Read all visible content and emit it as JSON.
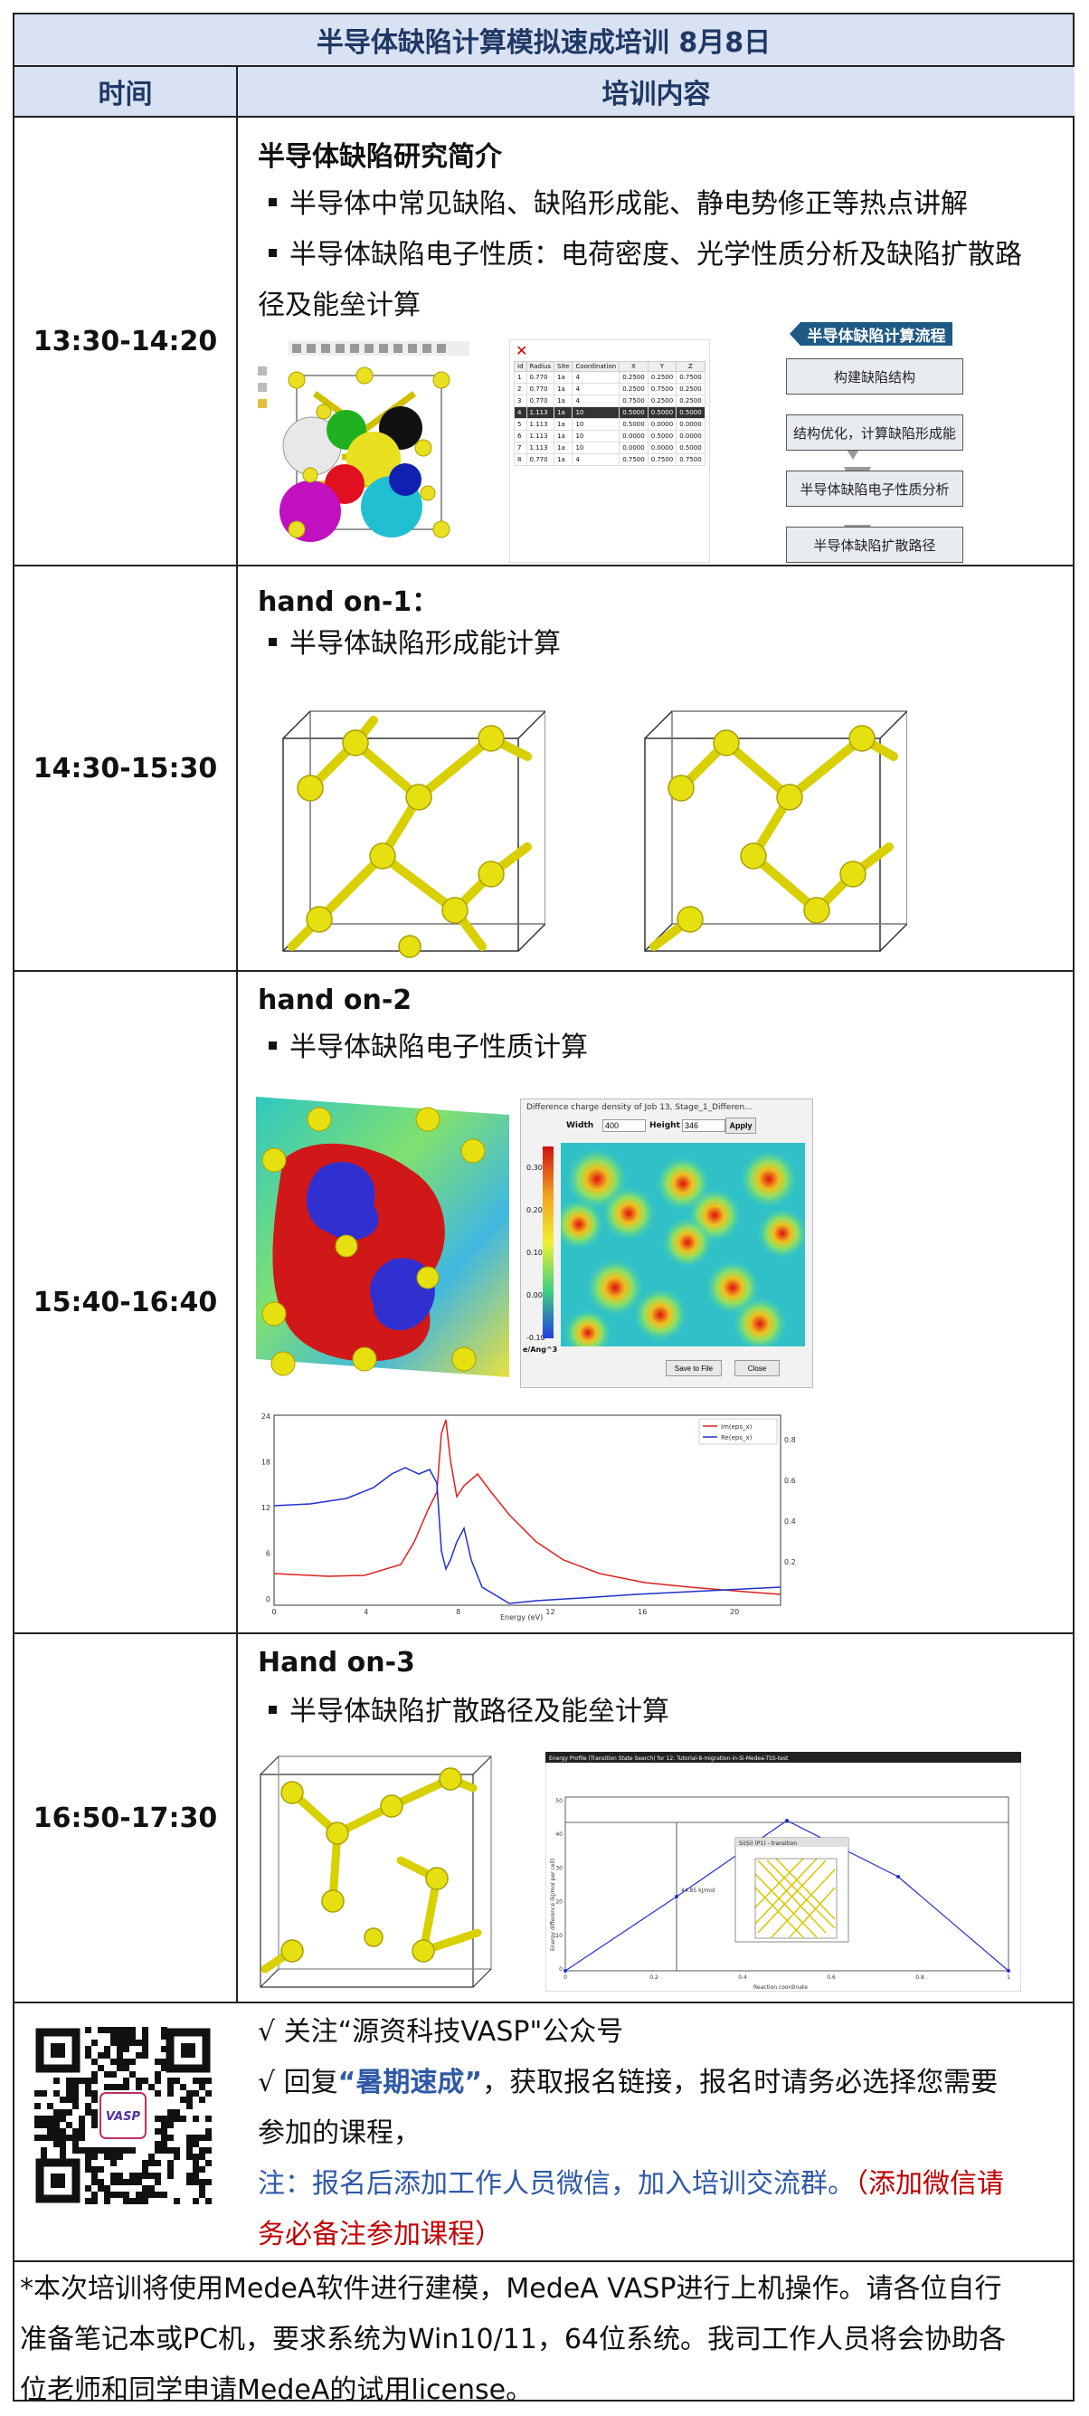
{
  "header": {
    "title": "半导体缺陷计算模拟速成培训 8月8日",
    "col_time": "时间",
    "col_content": "培训内容"
  },
  "rows": [
    {
      "time": "13:30-14:20",
      "title": "半导体缺陷研究简介",
      "bullets": [
        "半导体中常见缺陷、缺陷形成能、静电势修正等热点讲解",
        "半导体缺陷电子性质：电荷密度、光学性质分析及缺陷扩散路",
        "径及能垒计算"
      ],
      "flow": {
        "title": "半导体缺陷计算流程",
        "steps": [
          "构建缺陷结构",
          "结构优化，计算缺陷形成能",
          "半导体缺陷电子性质分析",
          "半导体缺陷扩散路径"
        ]
      },
      "table_head": [
        "Id",
        "Radius",
        "Site",
        "Coordination",
        "X",
        "Y",
        "Z"
      ],
      "table_rows": [
        [
          "1",
          "0.770",
          "1a",
          "4",
          "0.2500",
          "0.2500",
          "0.7500"
        ],
        [
          "2",
          "0.770",
          "1a",
          "4",
          "0.2500",
          "0.7500",
          "0.2500"
        ],
        [
          "3",
          "0.770",
          "1a",
          "4",
          "0.7500",
          "0.2500",
          "0.2500"
        ],
        [
          "4",
          "1.113",
          "1a",
          "10",
          "0.5000",
          "0.5000",
          "0.5000"
        ],
        [
          "5",
          "1.113",
          "1a",
          "10",
          "0.5000",
          "0.0000",
          "0.0000"
        ],
        [
          "6",
          "1.113",
          "1a",
          "10",
          "0.0000",
          "0.5000",
          "0.0000"
        ],
        [
          "7",
          "1.113",
          "1a",
          "10",
          "0.0000",
          "0.0000",
          "0.5000"
        ],
        [
          "8",
          "0.770",
          "1a",
          "4",
          "0.7500",
          "0.7500",
          "0.7500"
        ]
      ]
    },
    {
      "time": "14:30-15:30",
      "title": "hand on-1：",
      "bullets": [
        "半导体缺陷形成能计算"
      ]
    },
    {
      "time": "15:40-16:40",
      "title": "hand on-2",
      "bullets": [
        "半导体缺陷电子性质计算"
      ],
      "cd_window": {
        "title": "Difference charge density of Job 13, Stage_1_Differen...",
        "width_label": "Width",
        "width_value": "400",
        "height_label": "Height",
        "height_value": "346",
        "apply": "Apply",
        "save": "Save to File",
        "close": "Close",
        "unit": "e/Ang^3",
        "scale": [
          "0.30",
          "0.20",
          "0.10",
          "0.00",
          "-0.10"
        ]
      },
      "optics": {
        "legend": [
          "Im(eps_x)",
          "Re(eps_x)"
        ],
        "xlabel": "Energy (eV)",
        "x_ticks": [
          "0",
          "4",
          "8",
          "12",
          "16",
          "20"
        ],
        "y_ticks": [
          "24",
          "18",
          "12",
          "6",
          "0"
        ],
        "y2_ticks": [
          "0.8",
          "0.6",
          "0.4",
          "0.2"
        ],
        "colors": [
          "#e02020",
          "#2030d0"
        ]
      }
    },
    {
      "time": "16:50-17:30",
      "title": "Hand on-3",
      "bullets": [
        "半导体缺陷扩散路径及能垒计算"
      ],
      "energy": {
        "title": "Energy Profile (Transition State Search) for 12: Tutorial-8-migration-in-Si-Medea-TSS-test",
        "ylabel": "Energy difference (kJ/mol per cell)",
        "xlabel": "Reaction coordinate",
        "annotation": "44.85 kJ/mol",
        "inset_title": "Si(Si) (P1) - transition",
        "x_ticks": [
          "0",
          "0.2",
          "0.4",
          "0.6",
          "0.8",
          "1"
        ],
        "y_ticks": [
          "50",
          "40",
          "30",
          "20",
          "10",
          "0"
        ]
      }
    }
  ],
  "signup": {
    "line1": "√ 关注“源资科技VASP\"公众号",
    "line2_pre": "√ 回复",
    "line2_em": "“暑期速成”",
    "line2_post": "，获取报名链接，报名时请务必选择您需要",
    "line3": "参加的课程，",
    "line4_blue": "注：报名后添加工作人员微信，加入培训交流群。",
    "line4_red": "（添加微信请",
    "line5_red": "务必备注参加课程）",
    "qr_logo": "VASP"
  },
  "footer": {
    "lines": [
      "*本次培训将使用MedeA软件进行建模，MedeA VASP进行上机操作。请各位自行",
      "准备笔记本或PC机，要求系统为Win10/11，64位系统。我司工作人员将会协助各",
      "位老师和同学申请MedeA的试用license。"
    ]
  }
}
